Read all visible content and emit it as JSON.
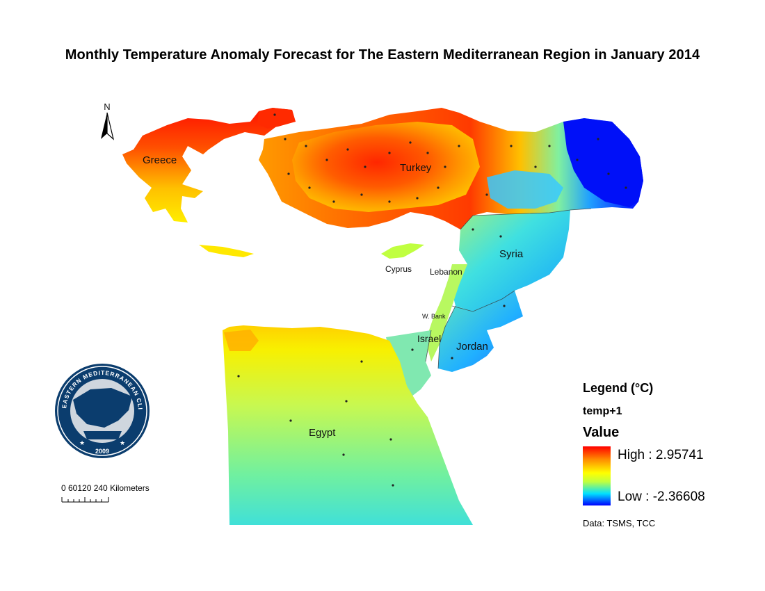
{
  "title": "Monthly Temperature Anomaly Forecast for The Eastern Mediterranean Region in January 2014",
  "north_arrow": "N",
  "labels": {
    "greece": "Greece",
    "turkey": "Turkey",
    "syria": "Syria",
    "cyprus": "Cyprus",
    "lebanon": "Lebanon",
    "west_bank": "W. Bank",
    "israel": "Israel",
    "jordan": "Jordan",
    "egypt": "Egypt"
  },
  "logo": {
    "text": "EASTERN MEDITERRANEAN CLIMATE CENTRE",
    "year": "2009",
    "colors": {
      "ring": "#0b3d6e",
      "inner": "#cfd6de"
    }
  },
  "legend": {
    "title": "Legend (°C)",
    "field": "temp+1",
    "value_label": "Value",
    "high_label": "High : 2.95741",
    "low_label": "Low : -2.36608",
    "high": 2.95741,
    "low": -2.36608,
    "ramp_colors": [
      "#ff0000",
      "#ff8c00",
      "#ffff00",
      "#bfff40",
      "#00e0ff",
      "#0000ff"
    ]
  },
  "scalebar": {
    "text": "0 60120   240 Kilometers",
    "unit": "Kilometers"
  },
  "data_source": "Data:  TSMS, TCC"
}
